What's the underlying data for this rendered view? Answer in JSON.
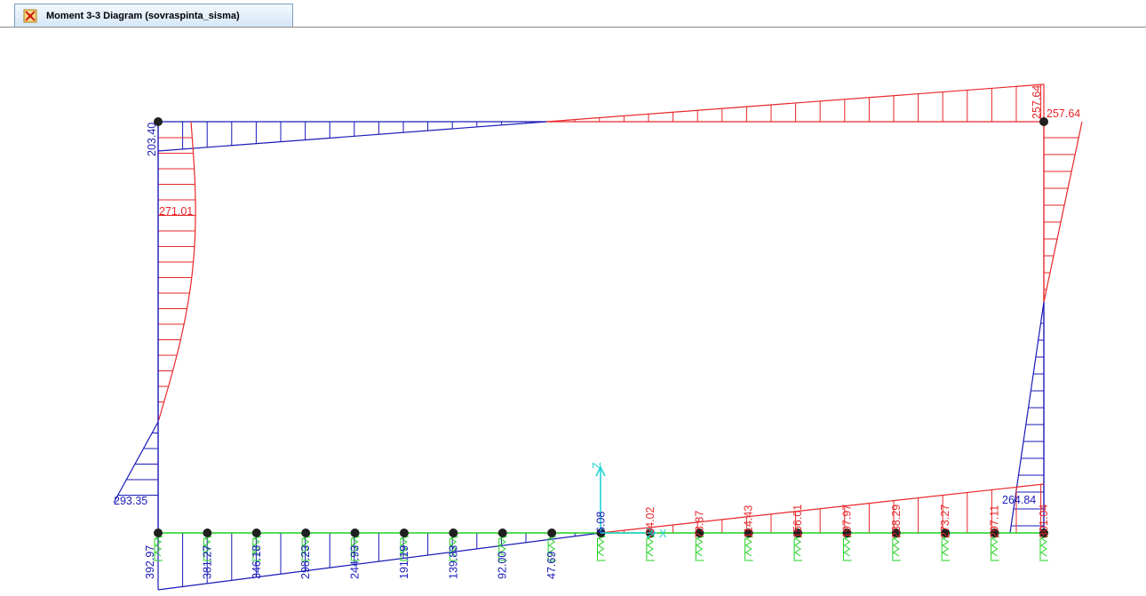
{
  "window": {
    "tab_title": "Moment 3-3 Diagram   (sovraspinta_sisma)",
    "tab_icon": "sap-structure-icon"
  },
  "colors": {
    "positive": "#e8272a",
    "negative": "#1a1ab8",
    "frame_green": "#1fd11f",
    "axis": "#22d3d3",
    "joint": "#202020",
    "tab_border": "#7f9db9"
  },
  "axis_labels": {
    "z": "Z",
    "x": "X"
  },
  "top_beam": {
    "left_label": "203.40",
    "right_label": "257.64",
    "right_col_top": "257.64"
  },
  "left_column": {
    "max_label": "271.01",
    "bottom_label": "293.35"
  },
  "right_column": {
    "bottom_label": "264.84"
  },
  "bottom_beam": {
    "negative_labels": [
      "392.97",
      "381.27",
      "346.18",
      "298.23",
      "244.93",
      "191.19",
      "139.83",
      "92.00",
      "47.69",
      "6.08"
    ],
    "positive_labels": [
      "-34.02",
      "73.87",
      "114.43",
      "156.01",
      "197.97",
      "238.29",
      "273.27",
      "297.11",
      "301.04"
    ]
  }
}
